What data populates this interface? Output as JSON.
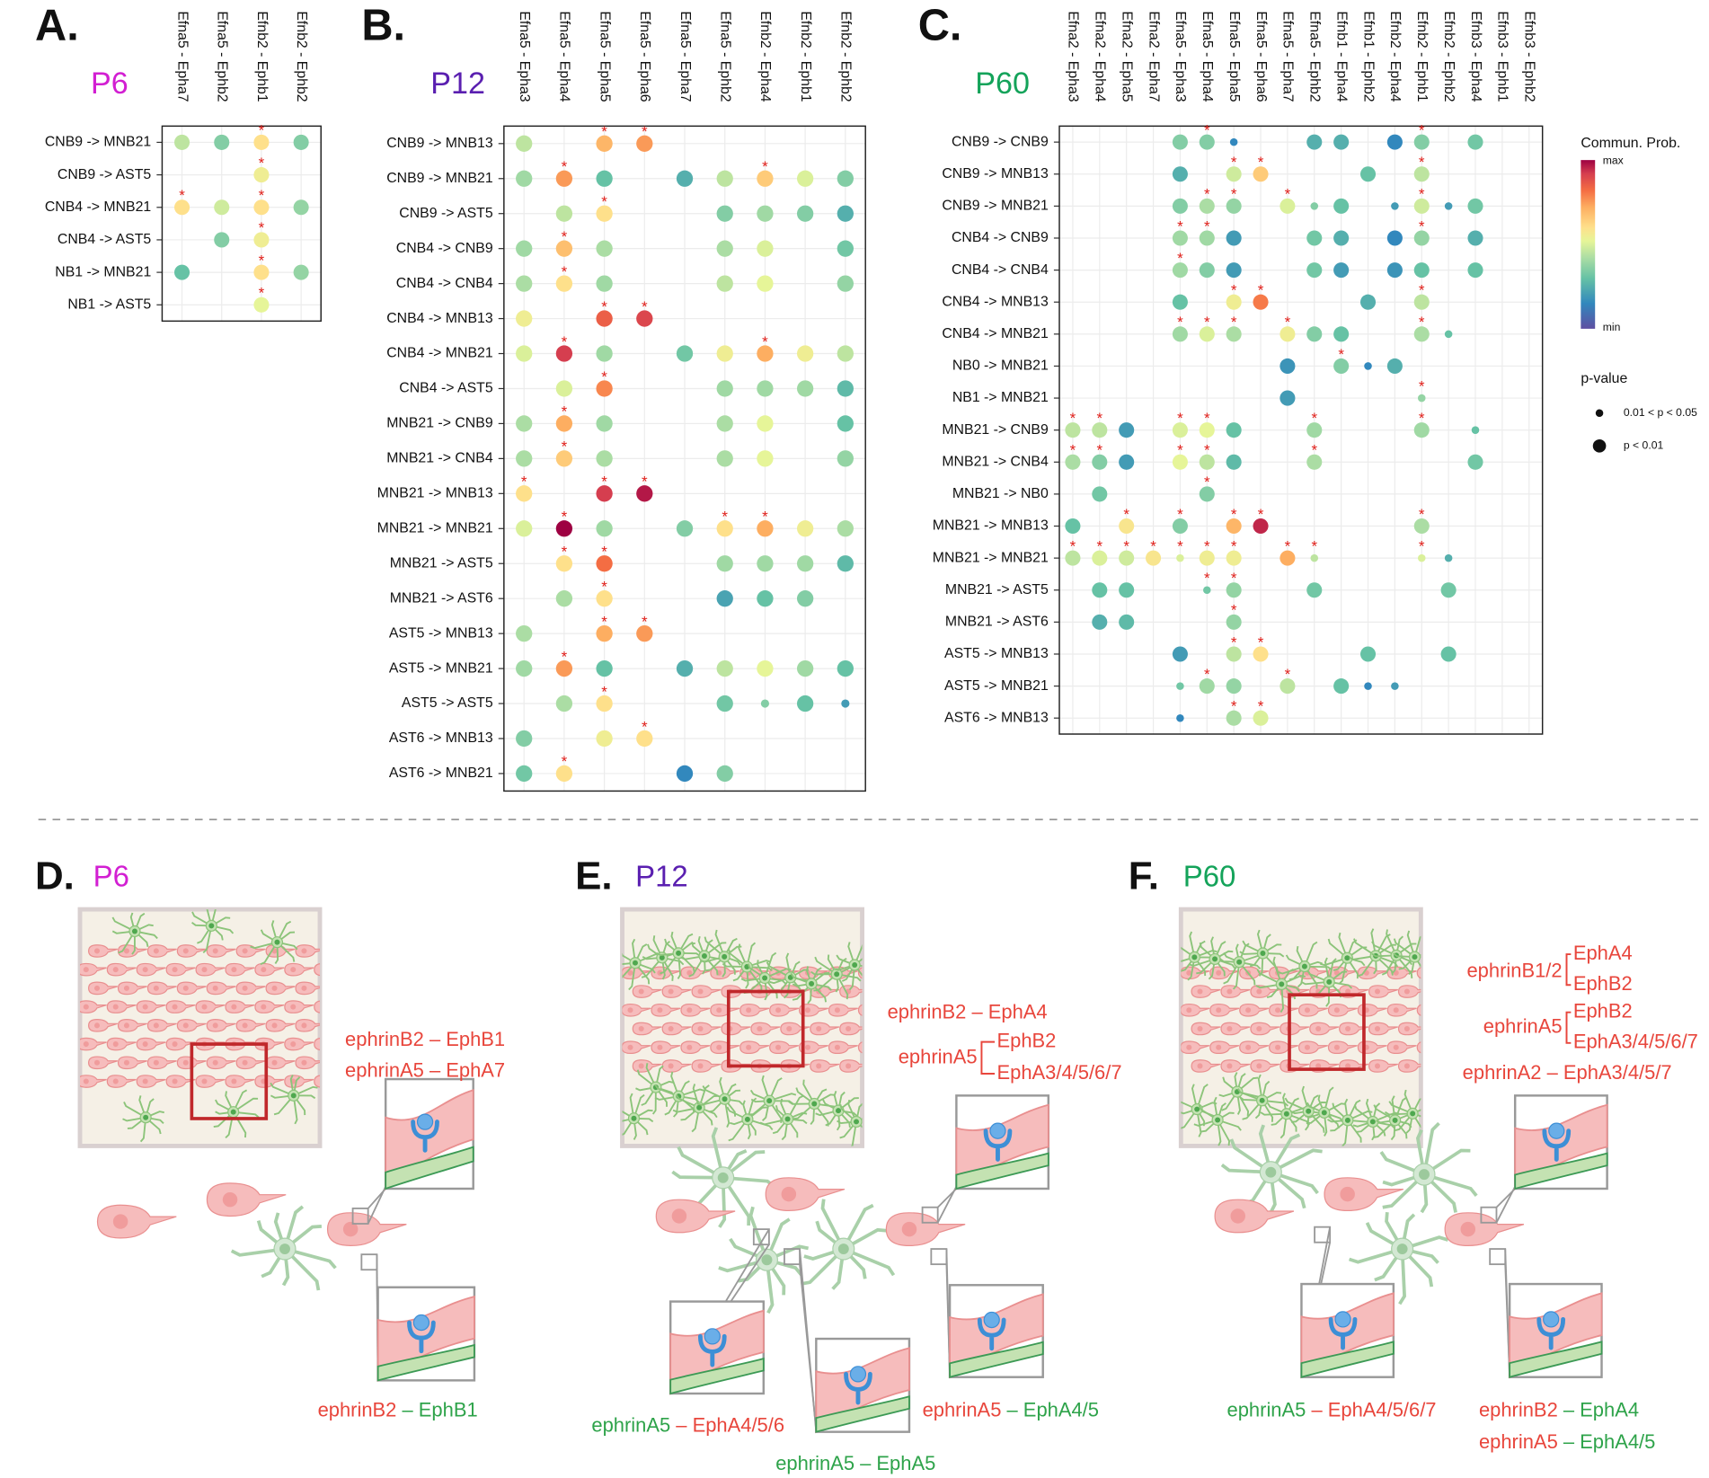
{
  "significance_label": "*",
  "legend": {
    "title": "Commun. Prob.",
    "max": "max",
    "min": "min",
    "size_title": "p-value",
    "sizes": [
      "0.01 < p < 0.05",
      "p < 0.01"
    ]
  },
  "panels": [
    {
      "letter": "A.",
      "age": "P6",
      "columns": [
        "Efna5 - Epha7",
        "Efna5 - Ephb2",
        "Efnb2 - Ephb1",
        "Efnb2 - Ephb2"
      ],
      "rows": [
        "CNB9 -> MNB21",
        "CNB9 -> AST5",
        "CNB4 -> MNB21",
        "CNB4 -> AST5",
        "NB1 -> MNB21",
        "NB1 -> AST5"
      ],
      "values": [
        [
          0.45,
          0.35,
          0.6,
          0.35
        ],
        [
          null,
          null,
          0.55,
          null
        ],
        [
          0.6,
          0.48,
          0.6,
          0.38
        ],
        [
          null,
          0.35,
          0.55,
          null
        ],
        [
          0.3,
          null,
          0.6,
          0.38
        ],
        [
          null,
          null,
          0.52,
          null
        ]
      ],
      "significant": [
        [
          0,
          2
        ],
        [
          1,
          2
        ],
        [
          2,
          0
        ],
        [
          2,
          2
        ],
        [
          3,
          2
        ],
        [
          4,
          2
        ],
        [
          5,
          2
        ]
      ],
      "small": []
    },
    {
      "letter": "B.",
      "age": "P12",
      "columns": [
        "Efna5 - Epha3",
        "Efna5 - Epha4",
        "Efna5 - Epha5",
        "Efna5 - Epha6",
        "Efna5 - Epha7",
        "Efna5 - Ephb2",
        "Efnb2 - Epha4",
        "Efnb2 - Ephb1",
        "Efnb2 - Ephb2"
      ],
      "rows": [
        "CNB9 -> MNB13",
        "CNB9 -> MNB21",
        "CNB9 -> AST5",
        "CNB4 -> CNB9",
        "CNB4 -> CNB4",
        "CNB4 -> MNB13",
        "CNB4 -> MNB21",
        "CNB4 -> AST5",
        "MNB21 -> CNB9",
        "MNB21 -> CNB4",
        "MNB21 -> MNB13",
        "MNB21 -> MNB21",
        "MNB21 -> AST5",
        "MNB21 -> AST6",
        "AST5 -> MNB13",
        "AST5 -> MNB21",
        "AST5 -> AST5",
        "AST6 -> MNB13",
        "AST6 -> MNB21"
      ],
      "values": [
        [
          0.45,
          null,
          0.7,
          0.75,
          null,
          null,
          null,
          null,
          null
        ],
        [
          0.4,
          0.75,
          0.3,
          null,
          0.25,
          0.45,
          0.65,
          0.5,
          0.35
        ],
        [
          null,
          0.45,
          0.6,
          null,
          null,
          0.35,
          0.4,
          0.35,
          0.25
        ],
        [
          0.4,
          0.68,
          0.42,
          null,
          null,
          0.42,
          0.5,
          null,
          0.32
        ],
        [
          0.42,
          0.6,
          0.4,
          null,
          null,
          0.45,
          0.52,
          null,
          0.38
        ],
        [
          0.55,
          null,
          0.85,
          0.9,
          null,
          null,
          null,
          null,
          null
        ],
        [
          0.5,
          0.92,
          0.4,
          null,
          0.32,
          0.55,
          0.72,
          0.55,
          0.45
        ],
        [
          null,
          0.5,
          0.78,
          null,
          null,
          0.4,
          0.4,
          0.4,
          0.28
        ],
        [
          0.42,
          0.72,
          0.4,
          null,
          null,
          0.42,
          0.52,
          null,
          0.3
        ],
        [
          0.42,
          0.65,
          0.42,
          null,
          null,
          0.42,
          0.52,
          null,
          0.38
        ],
        [
          0.6,
          null,
          0.92,
          0.97,
          null,
          null,
          null,
          null,
          null
        ],
        [
          0.5,
          1.0,
          0.4,
          null,
          0.35,
          0.6,
          0.72,
          0.55,
          0.42
        ],
        [
          null,
          0.6,
          0.82,
          null,
          null,
          0.4,
          0.4,
          0.4,
          0.28
        ],
        [
          null,
          0.42,
          0.6,
          null,
          null,
          0.22,
          0.3,
          0.35,
          null
        ],
        [
          0.42,
          null,
          0.72,
          0.75,
          null,
          null,
          null,
          null,
          null
        ],
        [
          0.4,
          0.75,
          0.3,
          null,
          0.25,
          0.45,
          0.52,
          0.4,
          0.3
        ],
        [
          null,
          0.42,
          0.6,
          null,
          null,
          0.32,
          0.35,
          0.3,
          0.2
        ],
        [
          0.35,
          null,
          0.55,
          0.6,
          null,
          null,
          null,
          null,
          null
        ],
        [
          0.32,
          0.6,
          null,
          null,
          0.15,
          0.35,
          null,
          null,
          null
        ]
      ],
      "significant": [
        [
          0,
          2
        ],
        [
          0,
          3
        ],
        [
          1,
          1
        ],
        [
          1,
          6
        ],
        [
          2,
          2
        ],
        [
          3,
          1
        ],
        [
          4,
          1
        ],
        [
          5,
          2
        ],
        [
          5,
          3
        ],
        [
          6,
          1
        ],
        [
          6,
          6
        ],
        [
          7,
          2
        ],
        [
          8,
          1
        ],
        [
          9,
          1
        ],
        [
          10,
          0
        ],
        [
          10,
          2
        ],
        [
          10,
          3
        ],
        [
          11,
          1
        ],
        [
          11,
          5
        ],
        [
          11,
          6
        ],
        [
          12,
          1
        ],
        [
          12,
          2
        ],
        [
          13,
          2
        ],
        [
          14,
          2
        ],
        [
          14,
          3
        ],
        [
          15,
          1
        ],
        [
          16,
          2
        ],
        [
          17,
          3
        ],
        [
          18,
          1
        ]
      ],
      "small": [
        [
          16,
          6
        ],
        [
          16,
          8
        ]
      ]
    },
    {
      "letter": "C.",
      "age": "P60",
      "columns": [
        "Efna2 - Epha3",
        "Efna2 - Epha4",
        "Efna2 - Epha5",
        "Efna2 - Epha7",
        "Efna5 - Epha3",
        "Efna5 - Epha4",
        "Efna5 - Epha5",
        "Efna5 - Epha6",
        "Efna5 - Epha7",
        "Efna5 - Ephb2",
        "Efnb1 - Epha4",
        "Efnb1 - Ephb2",
        "Efnb2 - Epha4",
        "Efnb2 - Ephb1",
        "Efnb2 - Ephb2",
        "Efnb3 - Epha4",
        "Efnb3 - Ephb1",
        "Efnb3 - Ephb2"
      ],
      "rows": [
        "CNB9 -> CNB9",
        "CNB9 -> MNB13",
        "CNB9 -> MNB21",
        "CNB4 -> CNB9",
        "CNB4 -> CNB4",
        "CNB4 -> MNB13",
        "CNB4 -> MNB21",
        "NB0 -> MNB21",
        "NB1 -> MNB21",
        "MNB21 -> CNB9",
        "MNB21 -> CNB4",
        "MNB21 -> NB0",
        "MNB21 -> MNB13",
        "MNB21 -> MNB21",
        "MNB21 -> AST5",
        "MNB21 -> AST6",
        "AST5 -> MNB13",
        "AST5 -> MNB21",
        "AST6 -> MNB13"
      ],
      "values": [
        [
          null,
          null,
          null,
          null,
          0.35,
          0.35,
          0.15,
          null,
          null,
          0.25,
          0.25,
          null,
          0.15,
          0.35,
          null,
          0.32,
          null,
          null
        ],
        [
          null,
          null,
          null,
          null,
          0.25,
          null,
          0.48,
          0.65,
          null,
          null,
          null,
          0.3,
          null,
          0.45,
          null,
          null,
          null,
          null
        ],
        [
          null,
          null,
          null,
          null,
          0.35,
          0.42,
          0.38,
          null,
          0.5,
          0.35,
          0.3,
          null,
          0.2,
          0.48,
          0.2,
          0.32,
          null,
          null
        ],
        [
          null,
          null,
          null,
          null,
          0.4,
          0.4,
          0.2,
          null,
          null,
          0.32,
          0.25,
          null,
          0.15,
          0.38,
          null,
          0.25,
          null,
          null
        ],
        [
          null,
          null,
          null,
          null,
          0.4,
          0.35,
          0.2,
          null,
          null,
          0.32,
          0.2,
          null,
          0.18,
          0.3,
          null,
          0.3,
          null,
          null
        ],
        [
          null,
          null,
          null,
          null,
          0.3,
          null,
          0.55,
          0.8,
          null,
          null,
          null,
          0.25,
          null,
          0.45,
          null,
          null,
          null,
          null
        ],
        [
          null,
          null,
          null,
          null,
          0.4,
          0.5,
          0.42,
          null,
          0.55,
          0.35,
          0.3,
          null,
          null,
          0.42,
          0.3,
          null,
          null,
          null
        ],
        [
          null,
          null,
          null,
          null,
          null,
          null,
          null,
          null,
          0.18,
          null,
          0.35,
          0.15,
          0.25,
          null,
          null,
          null,
          null,
          null
        ],
        [
          null,
          null,
          null,
          null,
          null,
          null,
          null,
          null,
          0.2,
          null,
          null,
          null,
          null,
          0.38,
          null,
          null,
          null,
          null
        ],
        [
          0.45,
          0.45,
          0.2,
          null,
          0.5,
          0.52,
          0.3,
          null,
          null,
          0.4,
          null,
          null,
          null,
          0.4,
          null,
          0.3,
          null,
          null
        ],
        [
          0.42,
          0.35,
          0.2,
          null,
          0.52,
          0.45,
          0.28,
          null,
          null,
          0.42,
          null,
          null,
          null,
          null,
          null,
          0.32,
          null,
          null
        ],
        [
          null,
          0.32,
          null,
          null,
          null,
          0.35,
          null,
          null,
          null,
          null,
          null,
          null,
          null,
          null,
          null,
          null,
          null,
          null
        ],
        [
          0.3,
          null,
          0.58,
          null,
          0.35,
          null,
          0.7,
          0.95,
          null,
          null,
          null,
          null,
          null,
          0.42,
          null,
          null,
          null,
          null
        ],
        [
          0.45,
          0.5,
          0.48,
          0.58,
          0.5,
          0.55,
          0.55,
          null,
          0.72,
          0.45,
          null,
          null,
          null,
          0.5,
          0.25,
          null,
          null,
          null
        ],
        [
          null,
          0.3,
          0.3,
          null,
          null,
          0.32,
          0.38,
          null,
          null,
          0.32,
          null,
          null,
          null,
          null,
          0.32,
          null,
          null,
          null
        ],
        [
          null,
          0.25,
          0.28,
          null,
          null,
          null,
          0.38,
          null,
          null,
          null,
          null,
          null,
          null,
          null,
          null,
          null,
          null,
          null
        ],
        [
          null,
          null,
          null,
          null,
          0.2,
          null,
          0.45,
          0.6,
          null,
          null,
          null,
          0.3,
          null,
          null,
          0.3,
          null,
          null,
          null
        ],
        [
          null,
          null,
          null,
          null,
          0.32,
          0.4,
          0.38,
          null,
          0.45,
          null,
          0.3,
          0.15,
          0.2,
          null,
          null,
          null,
          null,
          null
        ],
        [
          null,
          null,
          null,
          null,
          0.15,
          null,
          0.42,
          0.5,
          null,
          null,
          null,
          null,
          null,
          null,
          null,
          null,
          null,
          null
        ]
      ],
      "significant": [
        [
          0,
          5
        ],
        [
          0,
          13
        ],
        [
          1,
          6
        ],
        [
          1,
          7
        ],
        [
          1,
          13
        ],
        [
          2,
          5
        ],
        [
          2,
          6
        ],
        [
          2,
          8
        ],
        [
          2,
          13
        ],
        [
          3,
          4
        ],
        [
          3,
          5
        ],
        [
          3,
          13
        ],
        [
          4,
          4
        ],
        [
          5,
          6
        ],
        [
          5,
          7
        ],
        [
          5,
          13
        ],
        [
          6,
          4
        ],
        [
          6,
          5
        ],
        [
          6,
          6
        ],
        [
          6,
          8
        ],
        [
          6,
          13
        ],
        [
          7,
          10
        ],
        [
          8,
          13
        ],
        [
          9,
          0
        ],
        [
          9,
          1
        ],
        [
          9,
          4
        ],
        [
          9,
          5
        ],
        [
          9,
          9
        ],
        [
          9,
          13
        ],
        [
          10,
          0
        ],
        [
          10,
          1
        ],
        [
          10,
          4
        ],
        [
          10,
          5
        ],
        [
          10,
          9
        ],
        [
          11,
          5
        ],
        [
          12,
          2
        ],
        [
          12,
          4
        ],
        [
          12,
          6
        ],
        [
          12,
          7
        ],
        [
          12,
          13
        ],
        [
          13,
          0
        ],
        [
          13,
          1
        ],
        [
          13,
          2
        ],
        [
          13,
          3
        ],
        [
          13,
          4
        ],
        [
          13,
          5
        ],
        [
          13,
          6
        ],
        [
          13,
          8
        ],
        [
          13,
          9
        ],
        [
          13,
          13
        ],
        [
          14,
          5
        ],
        [
          14,
          6
        ],
        [
          15,
          6
        ],
        [
          16,
          6
        ],
        [
          16,
          7
        ],
        [
          17,
          5
        ],
        [
          17,
          8
        ],
        [
          18,
          6
        ],
        [
          18,
          7
        ]
      ],
      "small": [
        [
          0,
          6
        ],
        [
          2,
          9
        ],
        [
          2,
          12
        ],
        [
          2,
          14
        ],
        [
          6,
          14
        ],
        [
          7,
          11
        ],
        [
          8,
          13
        ],
        [
          9,
          15
        ],
        [
          13,
          4
        ],
        [
          13,
          9
        ],
        [
          13,
          13
        ],
        [
          13,
          14
        ],
        [
          14,
          5
        ],
        [
          17,
          4
        ],
        [
          17,
          11
        ],
        [
          17,
          12
        ],
        [
          18,
          4
        ]
      ]
    }
  ],
  "illustrations": [
    {
      "letter": "D.",
      "age": "P6",
      "labels": [
        "ephrinB2 – EphB1",
        "ephrinA5 – EphA7"
      ],
      "brackets": [],
      "pairs": [
        {
          "ligand": "ephrinB2",
          "receptor": "– EphB1",
          "ligand_color": "#e8463c",
          "receptor_color": "#2ea34a"
        }
      ]
    },
    {
      "letter": "E.",
      "age": "P12",
      "labels": [
        "ephrinB2 – EphA4"
      ],
      "brackets": [
        {
          "ligand": "ephrinA5",
          "receptors": [
            "EphB2",
            "EphA3/4/5/6/7"
          ]
        }
      ],
      "pairs": [
        {
          "ligand": "ephrinA5",
          "receptor": "– EphA4/5/6",
          "ligand_color": "#2ea34a",
          "receptor_color": "#e8463c"
        },
        {
          "ligand": "ephrinA5",
          "receptor": "– EphA5",
          "ligand_color": "#2ea34a",
          "receptor_color": "#2ea34a"
        },
        {
          "ligand": "ephrinA5",
          "receptor": "– EphA4/5",
          "ligand_color": "#e8463c",
          "receptor_color": "#2ea34a"
        }
      ]
    },
    {
      "letter": "F.",
      "age": "P60",
      "labels": [
        "ephrinA2 – EphA3/4/5/7"
      ],
      "brackets": [
        {
          "ligand": "ephrinB1/2",
          "receptors": [
            "EphA4",
            "EphB2"
          ]
        },
        {
          "ligand": "ephrinA5",
          "receptors": [
            "EphB2",
            "EphA3/4/5/6/7"
          ]
        }
      ],
      "pairs": [
        {
          "ligand": "ephrinA5",
          "receptor": "– EphA4/5/6/7",
          "ligand_color": "#2ea34a",
          "receptor_color": "#e8463c"
        },
        {
          "ligand": "ephrinB2",
          "receptor": "– EphA4",
          "ligand_color": "#e8463c",
          "receptor_color": "#2ea34a"
        },
        {
          "ligand": "ephrinA5",
          "receptor": "– EphA4/5",
          "ligand_color": "#e8463c",
          "receptor_color": "#2ea34a"
        }
      ]
    }
  ]
}
